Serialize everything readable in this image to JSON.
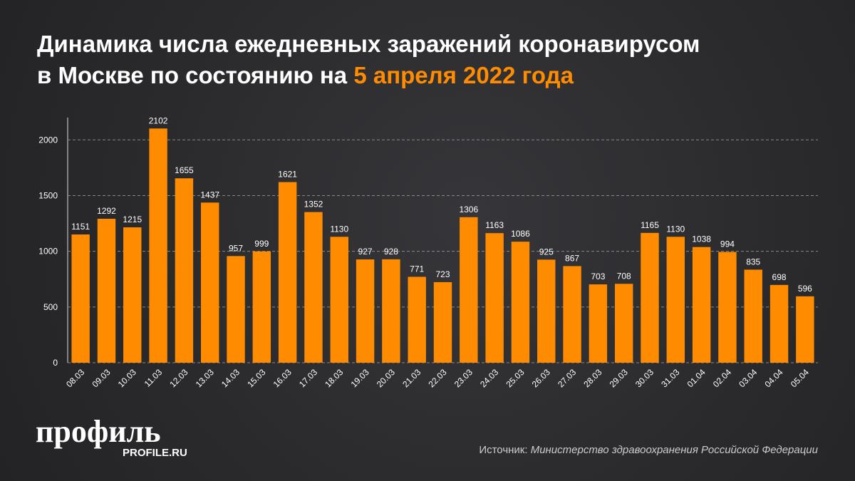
{
  "chart_data": {
    "type": "bar",
    "title": {
      "line1": "Динамика числа ежедневных заражений коронавирусом",
      "line2": "в Москве по состоянию на",
      "highlight": "5 апреля 2022 года"
    },
    "categories": [
      "08.03",
      "09.03",
      "10.03",
      "11.03",
      "12.03",
      "13.03",
      "14.03",
      "15.03",
      "16.03",
      "17.03",
      "18.03",
      "19.03",
      "20.03",
      "21.03",
      "22.03",
      "23.03",
      "24.03",
      "25.03",
      "26.03",
      "27.03",
      "28.03",
      "29.03",
      "30.03",
      "31.03",
      "01.04",
      "02.04",
      "03.04",
      "04.04",
      "05.04"
    ],
    "values": [
      1151,
      1292,
      1215,
      2102,
      1655,
      1437,
      957,
      999,
      1621,
      1352,
      1130,
      927,
      928,
      771,
      723,
      1306,
      1163,
      1086,
      925,
      867,
      703,
      708,
      1165,
      1130,
      1038,
      994,
      835,
      698,
      596
    ],
    "color": "#ff8c00",
    "ylim": [
      0,
      2200
    ],
    "yticks": [
      0,
      500,
      1000,
      1500,
      2000
    ],
    "grid": true,
    "logo": {
      "name": "профиль",
      "site": "PROFILE.RU"
    },
    "source": {
      "label": "Источник:",
      "text": "Министерство здравоохранения Российской Федерации"
    }
  }
}
